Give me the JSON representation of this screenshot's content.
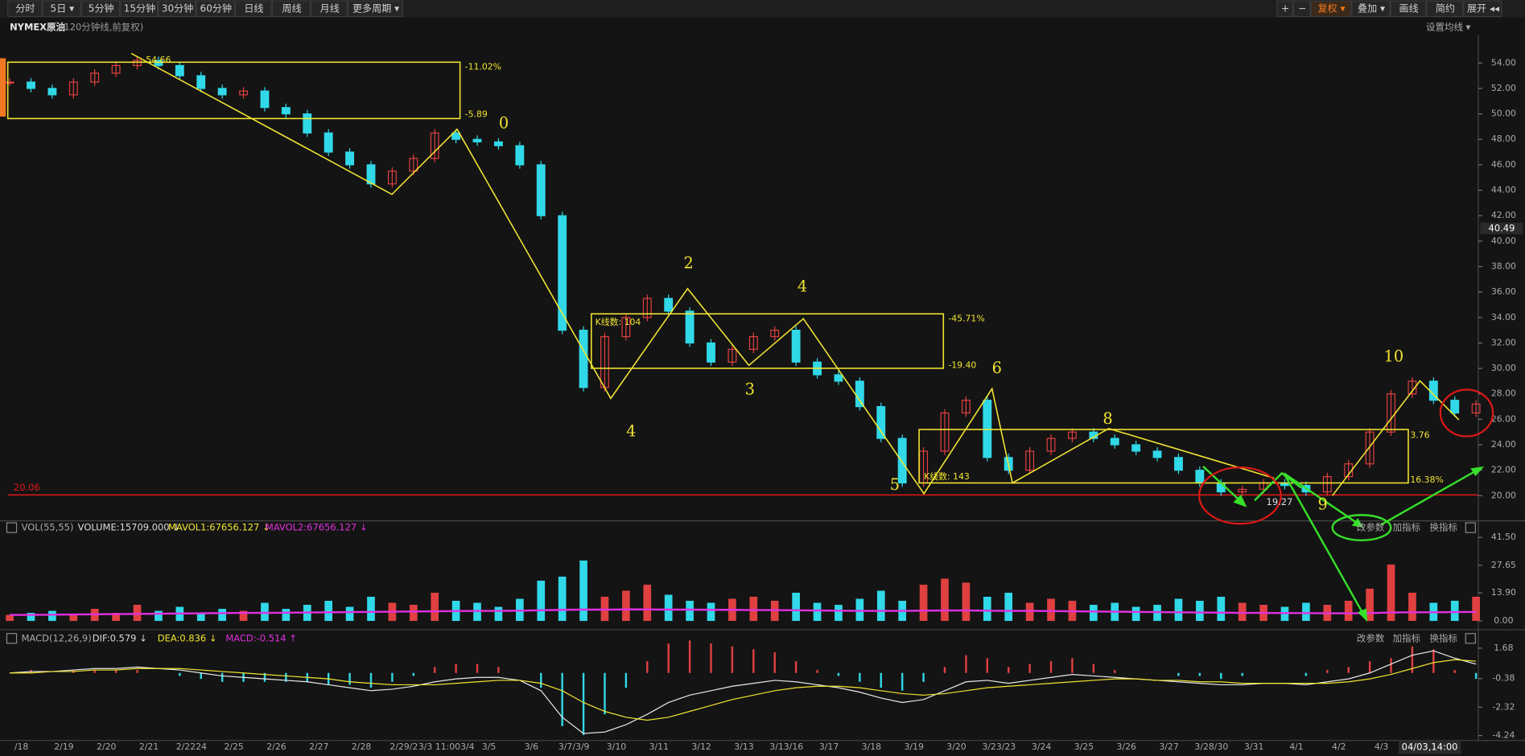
{
  "toolbar": {
    "left": [
      "分时",
      "5日 ▾",
      "5分钟",
      "15分钟",
      "30分钟",
      "60分钟",
      "日线",
      "周线",
      "月线",
      "更多周期 ▾"
    ],
    "right": [
      "+",
      "−",
      "复权 ▾",
      "叠加 ▾",
      "画线",
      "简约",
      "展开 ◂◂"
    ]
  },
  "header": {
    "symbol": "NYMEX原油",
    "subtitle": "(120分钟线,前复权)",
    "ma_setting": "设置均线 ▾"
  },
  "pane_buttons": [
    "改参数",
    "加指标",
    "换指标"
  ],
  "annotations": {
    "waves": [
      "0",
      "2",
      "4",
      "3",
      "4",
      "5",
      "6",
      "8",
      "9",
      "10"
    ],
    "high": 54.66,
    "box1_top": {
      "value": -11.02,
      "label": "-11.02%"
    },
    "box1_bottom": -5.89,
    "box2_count": "K线数: 104",
    "box2_top": {
      "value": -45.71,
      "label": "-45.71%"
    },
    "box2_bottom": {
      "value": -19.4,
      "label": "-19.40"
    },
    "box3_count": "K线数: 143",
    "box3_bottom": {
      "value": 16.38,
      "label": "16.38%"
    },
    "box3_top": 3.76,
    "low": 19.27
  },
  "chart_data": {
    "type": "candlestick",
    "categories": [
      "/18",
      "2/19",
      "2/20",
      "2/21",
      "2/2224",
      "2/25",
      "2/26",
      "2/27",
      "2/28",
      "2/29/2",
      "3/3 11:003/4",
      "3/5",
      "3/6",
      "3/7/3/9",
      "3/10",
      "3/11",
      "3/12",
      "3/13",
      "3/13/16",
      "3/17",
      "3/18",
      "3/19",
      "3/20",
      "3/23/23",
      "3/24",
      "3/25",
      "3/26",
      "3/27",
      "3/28/30",
      "3/31",
      "4/1",
      "4/2",
      "4/3"
    ],
    "closes": [
      52.5,
      52.0,
      51.5,
      52.5,
      53.2,
      53.8,
      54.2,
      53.8,
      53.0,
      52.0,
      51.5,
      51.8,
      50.5,
      50.0,
      48.5,
      47.0,
      46.0,
      44.5,
      45.5,
      46.5,
      48.5,
      48.0,
      47.8,
      47.5,
      46.0,
      42.0,
      33.0,
      28.5,
      32.5,
      34.0,
      35.5,
      34.5,
      32.0,
      30.5,
      31.5,
      32.5,
      33.0,
      30.5,
      29.5,
      29.0,
      27.0,
      24.5,
      21.0,
      23.5,
      26.5,
      27.5,
      23.0,
      22.0,
      23.5,
      24.5,
      25.0,
      24.5,
      24.0,
      23.5,
      23.0,
      22.0,
      21.0,
      20.3,
      20.5,
      21.0,
      20.8,
      20.3,
      21.5,
      22.5,
      25.0,
      28.0,
      29.0,
      27.5,
      26.5,
      27.2
    ],
    "ylim": [
      18.1,
      56.2
    ],
    "yticks": [
      {
        "value": 20,
        "label": "20.00"
      },
      {
        "value": 22,
        "label": "22.00"
      },
      {
        "value": 24,
        "label": "24.00"
      },
      {
        "value": 26,
        "label": "26.00"
      },
      {
        "value": 28,
        "label": "28.00"
      },
      {
        "value": 30,
        "label": "30.00"
      },
      {
        "value": 32,
        "label": "32.00"
      },
      {
        "value": 34,
        "label": "34.00"
      },
      {
        "value": 36,
        "label": "36.00"
      },
      {
        "value": 38,
        "label": "38.00"
      },
      {
        "value": 40,
        "label": "40.00"
      },
      {
        "value": 42,
        "label": "42.00"
      },
      {
        "value": 44,
        "label": "44.00"
      },
      {
        "value": 46,
        "label": "46.00"
      },
      {
        "value": 48,
        "label": "48.00"
      },
      {
        "value": 50,
        "label": "50.00"
      },
      {
        "value": 52,
        "label": "52.00"
      },
      {
        "value": 54,
        "label": "54.00"
      }
    ],
    "up_color": "#e04040",
    "down_color": "#30d8e8",
    "ref_line": 20.06,
    "ref_color": "#e01818",
    "last_price": 40.49,
    "cursor_time": "04/03,14:00"
  },
  "volume": {
    "title": "VOL(55,55)",
    "volume_text": "VOLUME:15709.000 ↓",
    "mavol1_text": "MAVOL1:67656.127 ↓",
    "mavol2_text": "MAVOL2:67656.127 ↓",
    "values": [
      3,
      4,
      5,
      3,
      6,
      4,
      8,
      5,
      7,
      4,
      6,
      5,
      9,
      6,
      8,
      10,
      7,
      12,
      9,
      8,
      14,
      10,
      9,
      7,
      11,
      20,
      22,
      30,
      12,
      15,
      18,
      13,
      10,
      9,
      11,
      12,
      10,
      14,
      9,
      8,
      11,
      15,
      10,
      18,
      21,
      19,
      12,
      14,
      9,
      11,
      10,
      8,
      9,
      7,
      8,
      11,
      10,
      12,
      9,
      8,
      7,
      9,
      8,
      10,
      16,
      28,
      14,
      9,
      10,
      12
    ],
    "mavol": [
      3,
      3,
      3.1,
      3.2,
      3.3,
      3.4,
      3.5,
      3.6,
      3.7,
      3.8,
      3.9,
      4,
      4,
      4.1,
      4.2,
      4.3,
      4.4,
      4.5,
      4.6,
      4.7,
      4.8,
      4.9,
      5,
      5,
      5.1,
      5.3,
      5.5,
      5.6,
      5.6,
      5.7,
      5.7,
      5.6,
      5.6,
      5.5,
      5.5,
      5.4,
      5.4,
      5.3,
      5.2,
      5.1,
      5,
      5,
      5,
      5.1,
      5.2,
      5.2,
      5.1,
      5,
      5,
      4.9,
      4.8,
      4.7,
      4.6,
      4.5,
      4.4,
      4.3,
      4.2,
      4.1,
      4,
      4,
      3.9,
      3.9,
      3.8,
      3.8,
      3.9,
      4.2,
      4.3,
      4.3,
      4.4,
      4.5
    ],
    "ylim": [
      -2.9,
      43.9
    ],
    "yticks": [
      {
        "value": 41.5,
        "label": "41.50"
      },
      27.65,
      {
        "value": 13.9,
        "label": "13.90"
      },
      {
        "value": 0,
        "label": "0.00"
      }
    ],
    "mavol_color": "#e030e0"
  },
  "macd": {
    "title": "MACD(12,26,9)",
    "dif_text": "DIF:0.579 ↓",
    "dea_text": "DEA:0.836 ↓",
    "macd_text": "MACD:-0.514 ↑",
    "dif": [
      0,
      0.1,
      0.1,
      0.2,
      0.3,
      0.3,
      0.4,
      0.3,
      0.2,
      0,
      -0.2,
      -0.3,
      -0.4,
      -0.5,
      -0.6,
      -0.8,
      -1,
      -1.2,
      -1.1,
      -0.9,
      -0.6,
      -0.4,
      -0.3,
      -0.3,
      -0.5,
      -1.2,
      -3,
      -4.1,
      -4,
      -3.5,
      -2.8,
      -2,
      -1.5,
      -1.2,
      -0.9,
      -0.7,
      -0.5,
      -0.6,
      -0.8,
      -1,
      -1.3,
      -1.7,
      -2,
      -1.8,
      -1.2,
      -0.6,
      -0.5,
      -0.7,
      -0.5,
      -0.3,
      -0.1,
      -0.2,
      -0.3,
      -0.4,
      -0.5,
      -0.6,
      -0.7,
      -0.8,
      -0.8,
      -0.7,
      -0.7,
      -0.8,
      -0.6,
      -0.4,
      0,
      0.6,
      1.2,
      1.5,
      1,
      0.6
    ],
    "dea": [
      0,
      0,
      0.1,
      0.1,
      0.2,
      0.2,
      0.3,
      0.3,
      0.3,
      0.2,
      0.1,
      0,
      -0.1,
      -0.2,
      -0.3,
      -0.4,
      -0.6,
      -0.7,
      -0.8,
      -0.8,
      -0.8,
      -0.7,
      -0.6,
      -0.5,
      -0.5,
      -0.7,
      -1.2,
      -2,
      -2.6,
      -3,
      -3.2,
      -3,
      -2.6,
      -2.2,
      -1.8,
      -1.5,
      -1.2,
      -1,
      -0.9,
      -0.9,
      -1,
      -1.2,
      -1.4,
      -1.5,
      -1.4,
      -1.2,
      -1,
      -0.9,
      -0.8,
      -0.7,
      -0.6,
      -0.5,
      -0.4,
      -0.4,
      -0.5,
      -0.5,
      -0.6,
      -0.6,
      -0.7,
      -0.7,
      -0.7,
      -0.7,
      -0.7,
      -0.6,
      -0.4,
      -0.1,
      0.3,
      0.7,
      0.9,
      0.8
    ],
    "hist": [
      0,
      0.2,
      0,
      0.2,
      0.2,
      0.2,
      0.2,
      0,
      -0.2,
      -0.4,
      -0.6,
      -0.6,
      -0.6,
      -0.6,
      -0.6,
      -0.8,
      -0.8,
      -1,
      -0.6,
      -0.2,
      0.4,
      0.6,
      0.6,
      0.4,
      0,
      -1,
      -3.6,
      -4.2,
      -2.8,
      -1,
      0.8,
      2,
      2.2,
      2,
      1.8,
      1.6,
      1.4,
      0.8,
      0.2,
      -0.2,
      -0.6,
      -1,
      -1.2,
      -0.6,
      0.4,
      1.2,
      1,
      0.4,
      0.6,
      0.8,
      1,
      0.6,
      0.2,
      0,
      0,
      -0.2,
      -0.2,
      -0.4,
      -0.2,
      0,
      0,
      -0.2,
      0.2,
      0.4,
      0.8,
      1,
      1.8,
      1.6,
      0.2,
      -0.4
    ],
    "ylim": [
      -4.57,
      2.01
    ],
    "yticks": [
      1.68,
      -0.38,
      -2.32,
      -4.24
    ],
    "dif_color": "#e8e8e8",
    "dea_color": "#f2e531"
  }
}
